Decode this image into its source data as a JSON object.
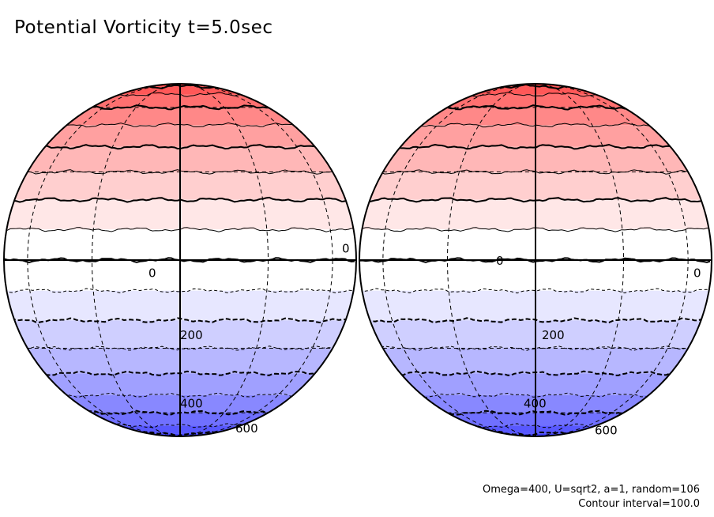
{
  "title": "Potential Vorticity t=5.0sec",
  "params_text": "Omega=400, U=sqrt2, a=1, random=106",
  "interval_text": "Contour interval=100.0",
  "colors": {
    "north_pole": "#ff4040",
    "equator": "#ffffff",
    "south_pole": "#4040ff",
    "outline": "#000000"
  },
  "globes": [
    {
      "name": "left-globe",
      "labels": [
        {
          "text": "0",
          "lat": -4
        },
        {
          "text": "200",
          "lat": -25
        },
        {
          "text": "400",
          "lat": -54
        },
        {
          "text": "600",
          "lat": -72
        },
        {
          "text": "0",
          "lat": 4
        }
      ]
    },
    {
      "name": "right-globe",
      "labels": [
        {
          "text": "0",
          "lat": 0
        },
        {
          "text": "200",
          "lat": -25
        },
        {
          "text": "400",
          "lat": -54
        },
        {
          "text": "600",
          "lat": -74
        },
        {
          "text": "0",
          "lat": -4
        }
      ]
    }
  ],
  "contour_levels_lat": [
    -80,
    -70,
    -60,
    -50,
    -40,
    -30,
    -20,
    -10,
    0,
    10,
    20,
    30,
    40,
    50,
    60,
    70,
    80
  ]
}
